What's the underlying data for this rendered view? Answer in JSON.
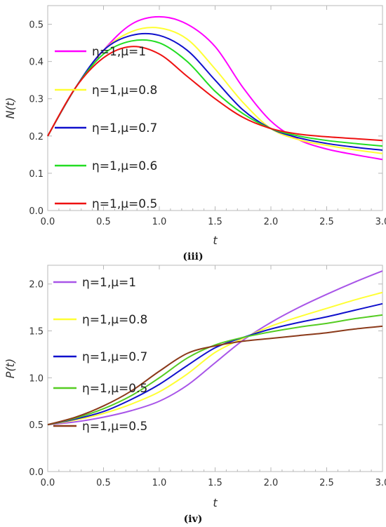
{
  "chart_data": [
    {
      "type": "line",
      "caption": "(iii)",
      "xlabel": "t",
      "ylabel": "N(t)",
      "xlim": [
        0,
        3
      ],
      "ylim": [
        0,
        0.55
      ],
      "xticks": [
        0.0,
        0.5,
        1.0,
        1.5,
        2.0,
        2.5,
        3.0
      ],
      "yticks": [
        0.0,
        0.1,
        0.2,
        0.3,
        0.4,
        0.5
      ],
      "xtick_labels": [
        "0.0",
        "0.5",
        "1.0",
        "1.5",
        "2.0",
        "2.5",
        "3.0"
      ],
      "ytick_labels": [
        "0.0",
        "0.1",
        "0.2",
        "0.3",
        "0.4",
        "0.5"
      ],
      "legend_position": "left",
      "x": [
        0,
        0.25,
        0.5,
        0.75,
        1.0,
        1.25,
        1.5,
        1.75,
        2.0,
        2.25,
        2.5,
        2.75,
        3.0
      ],
      "series": [
        {
          "name": "η=1,μ=1",
          "color": "#ff00ff",
          "values": [
            0.2,
            0.33,
            0.43,
            0.5,
            0.52,
            0.5,
            0.44,
            0.33,
            0.24,
            0.19,
            0.165,
            0.15,
            0.137
          ]
        },
        {
          "name": "η=1,μ=0.8",
          "color": "#ffff33",
          "values": [
            0.2,
            0.33,
            0.43,
            0.48,
            0.49,
            0.46,
            0.38,
            0.29,
            0.22,
            0.19,
            0.175,
            0.163,
            0.153
          ]
        },
        {
          "name": "η=1,μ=0.7",
          "color": "#1010cc",
          "values": [
            0.2,
            0.33,
            0.43,
            0.47,
            0.47,
            0.43,
            0.35,
            0.27,
            0.22,
            0.195,
            0.18,
            0.17,
            0.162
          ]
        },
        {
          "name": "η=1,μ=0.6",
          "color": "#22dd22",
          "values": [
            0.2,
            0.33,
            0.42,
            0.455,
            0.45,
            0.4,
            0.32,
            0.26,
            0.22,
            0.2,
            0.188,
            0.18,
            0.173
          ]
        },
        {
          "name": "η=1,μ=0.5",
          "color": "#ee1111",
          "values": [
            0.2,
            0.33,
            0.41,
            0.44,
            0.42,
            0.36,
            0.3,
            0.25,
            0.22,
            0.205,
            0.198,
            0.193,
            0.188
          ]
        }
      ]
    },
    {
      "type": "line",
      "caption": "(iv)",
      "xlabel": "t",
      "ylabel": "P(t)",
      "xlim": [
        0,
        3
      ],
      "ylim": [
        0,
        2.2
      ],
      "xticks": [
        0.0,
        0.5,
        1.0,
        1.5,
        2.0,
        2.5,
        3.0
      ],
      "yticks": [
        0.0,
        0.5,
        1.0,
        1.5,
        2.0
      ],
      "xtick_labels": [
        "0.0",
        "0.5",
        "1.0",
        "1.5",
        "2.0",
        "2.5",
        "3.0"
      ],
      "ytick_labels": [
        "0.0",
        "0.5",
        "1.0",
        "1.5",
        "2.0"
      ],
      "legend_position": "left",
      "x": [
        0,
        0.25,
        0.5,
        0.75,
        1.0,
        1.25,
        1.5,
        1.75,
        2.0,
        2.25,
        2.5,
        2.75,
        3.0
      ],
      "series": [
        {
          "name": "η=1,μ=1",
          "color": "#a855e8",
          "values": [
            0.5,
            0.53,
            0.58,
            0.65,
            0.75,
            0.92,
            1.16,
            1.4,
            1.59,
            1.75,
            1.89,
            2.02,
            2.14
          ]
        },
        {
          "name": "η=1,μ=0.8",
          "color": "#ffff33",
          "values": [
            0.5,
            0.55,
            0.62,
            0.72,
            0.85,
            1.04,
            1.27,
            1.42,
            1.55,
            1.65,
            1.74,
            1.83,
            1.91
          ]
        },
        {
          "name": "η=1,μ=0.7",
          "color": "#1010cc",
          "values": [
            0.5,
            0.56,
            0.64,
            0.77,
            0.93,
            1.13,
            1.32,
            1.43,
            1.52,
            1.59,
            1.65,
            1.72,
            1.79
          ]
        },
        {
          "name": "η=1,μ=0.5",
          "color": "#55cc22",
          "values": [
            0.5,
            0.57,
            0.67,
            0.81,
            1.0,
            1.21,
            1.35,
            1.43,
            1.49,
            1.54,
            1.58,
            1.63,
            1.67
          ]
        },
        {
          "name": "η=1,μ=0.5",
          "color": "#8b3a1a",
          "values": [
            0.5,
            0.58,
            0.7,
            0.86,
            1.07,
            1.26,
            1.34,
            1.39,
            1.42,
            1.45,
            1.48,
            1.52,
            1.55
          ]
        }
      ]
    }
  ]
}
